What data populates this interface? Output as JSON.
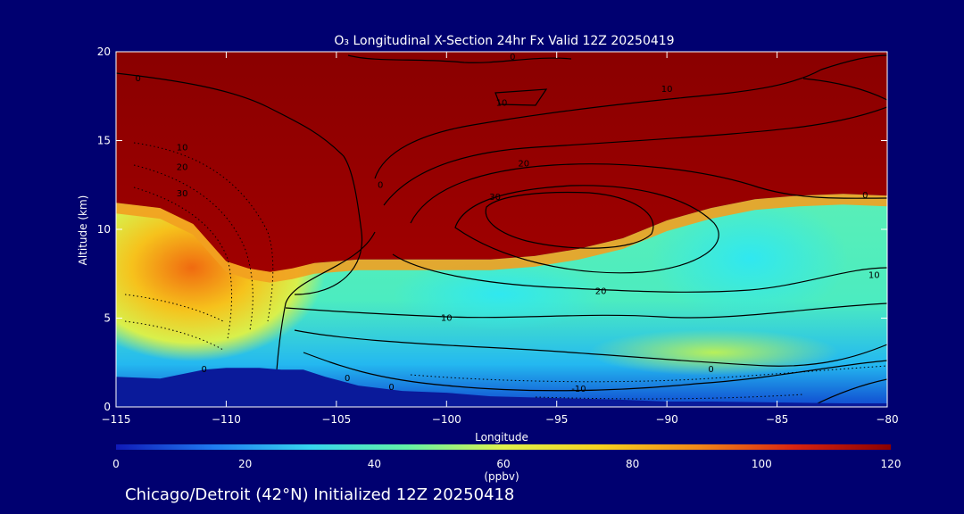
{
  "chart_data": {
    "type": "heatmap",
    "title": "O₃ Longitudinal X-Section 24hr  Fx Valid 12Z 20250419",
    "xlabel": "Longitude",
    "ylabel": "Altitude (km)",
    "xlim": [
      -115,
      -80
    ],
    "ylim": [
      0,
      20
    ],
    "x_ticks": [
      -115,
      -110,
      -105,
      -100,
      -95,
      -90,
      -85,
      -80
    ],
    "x_tick_labels": [
      "−115",
      "−110",
      "−105",
      "−100",
      "−95",
      "−90",
      "−85",
      "−80"
    ],
    "y_ticks": [
      0,
      5,
      10,
      15,
      20
    ],
    "y_tick_labels": [
      "0",
      "5",
      "10",
      "15",
      "20"
    ],
    "colorbar": {
      "label": "(ppbv)",
      "range": [
        0,
        120
      ],
      "ticks": [
        0,
        20,
        40,
        60,
        80,
        100,
        120
      ],
      "tick_labels": [
        "0",
        "20",
        "40",
        "60",
        "80",
        "100",
        "120"
      ],
      "colors": [
        "#101ab8",
        "#1f7af0",
        "#36d6ee",
        "#62f2a6",
        "#dff24c",
        "#f6d21e",
        "#f28a18",
        "#d92410",
        "#8a0000"
      ]
    },
    "terrain": {
      "lon": [
        -115,
        -113,
        -111,
        -110,
        -108.5,
        -107.5,
        -106.5,
        -105.5,
        -104,
        -102,
        -100,
        -98,
        -95,
        -92,
        -90,
        -88,
        -85,
        -82,
        -80
      ],
      "height_km": [
        1.7,
        1.6,
        2.1,
        2.2,
        2.2,
        2.1,
        2.1,
        1.7,
        1.2,
        0.9,
        0.8,
        0.6,
        0.5,
        0.4,
        0.3,
        0.3,
        0.25,
        0.2,
        0.2
      ]
    },
    "tropopause_120ppb": {
      "lon": [
        -115,
        -113,
        -111.5,
        -110,
        -109,
        -108,
        -107,
        -106,
        -104,
        -101,
        -98,
        -96,
        -94,
        -92,
        -90,
        -88,
        -86,
        -84,
        -82,
        -80
      ],
      "height_km": [
        11.5,
        11.2,
        10.3,
        8.2,
        7.8,
        7.6,
        7.8,
        8.1,
        8.3,
        8.3,
        8.3,
        8.5,
        8.9,
        9.5,
        10.5,
        11.2,
        11.7,
        11.9,
        12.0,
        11.9
      ]
    },
    "contour_labels": [
      {
        "text": "0",
        "lon": -114,
        "alt": 18.5
      },
      {
        "text": "10",
        "lon": -112,
        "alt": 14.6
      },
      {
        "text": "20",
        "lon": -112,
        "alt": 13.5
      },
      {
        "text": "30",
        "lon": -112,
        "alt": 12.0
      },
      {
        "text": "0",
        "lon": -103,
        "alt": 12.5
      },
      {
        "text": "0",
        "lon": -97,
        "alt": 19.7
      },
      {
        "text": "10",
        "lon": -97.5,
        "alt": 17.1
      },
      {
        "text": "20",
        "lon": -96.5,
        "alt": 13.7
      },
      {
        "text": "30",
        "lon": -97.8,
        "alt": 11.8
      },
      {
        "text": "10",
        "lon": -90,
        "alt": 17.9
      },
      {
        "text": "0",
        "lon": -81,
        "alt": 11.9
      },
      {
        "text": "20",
        "lon": -93,
        "alt": 6.5
      },
      {
        "text": "10",
        "lon": -80.6,
        "alt": 7.4
      },
      {
        "text": "10",
        "lon": -100,
        "alt": 5.0
      },
      {
        "text": "0",
        "lon": -88,
        "alt": 2.1
      },
      {
        "text": "-10",
        "lon": -94,
        "alt": 1.0
      },
      {
        "text": "0",
        "lon": -111,
        "alt": 2.1
      },
      {
        "text": "0",
        "lon": -104.5,
        "alt": 1.6
      },
      {
        "text": "0",
        "lon": -102.5,
        "alt": 1.1
      }
    ]
  },
  "footer": {
    "text": "Chicago/Detroit (42°N) Initialized 12Z 20250418"
  }
}
